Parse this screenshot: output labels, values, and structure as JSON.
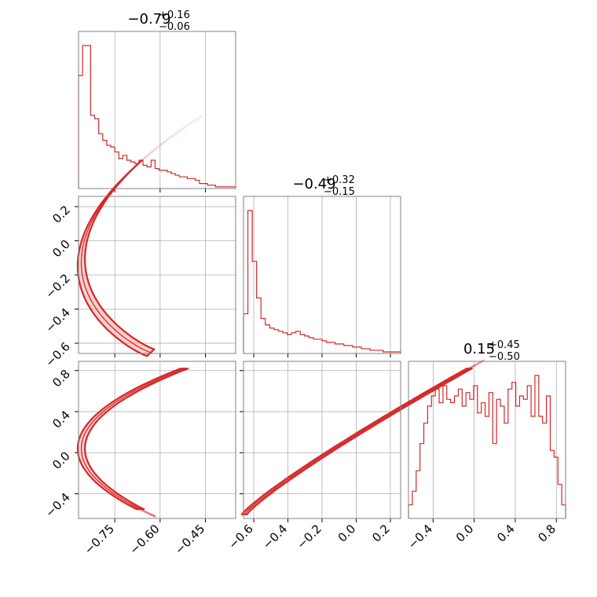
{
  "chart_data": {
    "type": "corner",
    "color": "#d62728",
    "parameters": [
      {
        "median": "−0.79",
        "plus": "+0.16",
        "minus": "−0.06",
        "range": [
          -0.87,
          -0.35
        ],
        "ticks": [
          -0.75,
          -0.6,
          -0.45
        ],
        "tick_labels": [
          "−0.75",
          "−0.60",
          "−0.45"
        ]
      },
      {
        "median": "−0.49",
        "plus": "+0.32",
        "minus": "−0.15",
        "range": [
          -0.66,
          0.26
        ],
        "ticks": [
          -0.6,
          -0.4,
          -0.2,
          0.0,
          0.2
        ],
        "tick_labels": [
          "−0.6",
          "−0.4",
          "−0.2",
          "0.0",
          "0.2"
        ]
      },
      {
        "median": "0.15",
        "plus": "+0.45",
        "minus": "−0.50",
        "range": [
          -0.64,
          0.89
        ],
        "ticks": [
          -0.4,
          0.0,
          0.4,
          0.8
        ],
        "tick_labels": [
          "−0.4",
          "0.0",
          "0.4",
          "0.8"
        ]
      }
    ],
    "histograms": [
      {
        "param": 0,
        "counts": [
          68,
          86,
          86,
          44,
          42,
          33,
          29,
          26,
          25,
          22,
          18,
          20,
          17,
          16,
          15,
          17,
          14,
          13,
          17,
          12,
          11,
          11,
          10,
          9,
          8,
          7,
          7,
          6,
          6,
          5,
          3,
          3,
          2,
          2,
          1,
          1,
          1,
          1,
          1
        ]
      },
      {
        "param": 1,
        "counts": [
          25,
          90,
          58,
          35,
          22,
          18,
          16,
          15,
          14,
          13,
          12,
          13,
          14,
          12,
          11,
          10,
          9,
          9,
          8,
          7,
          7,
          6,
          6,
          5,
          5,
          4,
          4,
          3,
          3,
          2,
          2,
          2,
          1,
          1,
          1,
          1
        ]
      },
      {
        "param": 2,
        "counts": [
          4,
          8,
          14,
          22,
          28,
          33,
          36,
          38,
          34,
          39,
          35,
          34,
          36,
          38,
          33,
          37,
          35,
          39,
          31,
          34,
          30,
          37,
          22,
          35,
          33,
          28,
          38,
          40,
          33,
          36,
          35,
          39,
          30,
          42,
          30,
          28,
          36,
          20,
          18,
          10,
          4
        ]
      }
    ]
  }
}
